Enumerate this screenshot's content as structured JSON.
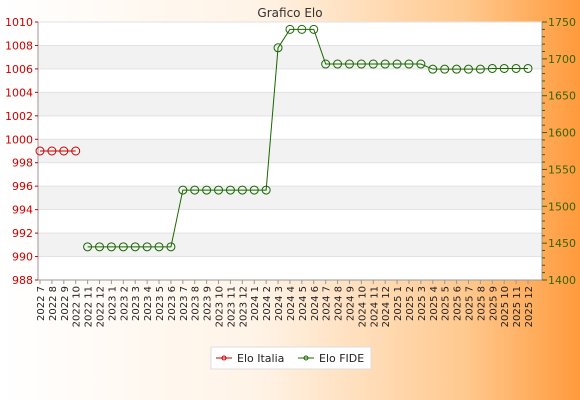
{
  "chart_data": {
    "type": "line",
    "title": "Grafico Elo",
    "categories": [
      "2022 7",
      "2022 8",
      "2022 9",
      "2022 10",
      "2022 11",
      "2022 12",
      "2023 1",
      "2023 2",
      "2023 3",
      "2023 4",
      "2023 5",
      "2023 6",
      "2023 7",
      "2023 8",
      "2023 9",
      "2023 10",
      "2023 11",
      "2023 12",
      "2024 1",
      "2024 2",
      "2024 3",
      "2024 4",
      "2024 5",
      "2024 6",
      "2024 7",
      "2024 8",
      "2024 9",
      "2024 10",
      "2024 11",
      "2024 12",
      "2025 1",
      "2025 2",
      "2025 3",
      "2025 4",
      "2025 5",
      "2025 6",
      "2025 7",
      "2025 8",
      "2025 9",
      "2025 10",
      "2025 11",
      "2025 12"
    ],
    "y_left": {
      "range": [
        988,
        1010
      ],
      "ticks": [
        988,
        990,
        992,
        994,
        996,
        998,
        1000,
        1002,
        1004,
        1006,
        1008,
        1010
      ],
      "color": "#cc0000"
    },
    "y_right": {
      "range": [
        1400,
        1750
      ],
      "ticks": [
        1400,
        1450,
        1500,
        1550,
        1600,
        1650,
        1700,
        1750
      ],
      "color": "#336600"
    },
    "grid": true,
    "legend_position": "bottom",
    "series": [
      {
        "name": "Elo Italia",
        "axis": "left",
        "color": "#cc0000",
        "values": [
          999,
          999,
          999,
          999,
          null,
          null,
          null,
          null,
          null,
          null,
          null,
          null,
          null,
          null,
          null,
          null,
          null,
          null,
          null,
          null,
          null,
          null,
          null,
          null,
          null,
          null,
          null,
          null,
          null,
          null,
          null,
          null,
          null,
          null,
          null,
          null,
          null,
          null,
          null,
          null,
          null,
          null
        ]
      },
      {
        "name": "Elo FIDE",
        "axis": "right",
        "color": "#1a6600",
        "values": [
          null,
          null,
          null,
          null,
          1445,
          1445,
          1445,
          1445,
          1445,
          1445,
          1445,
          1445,
          1522,
          1522,
          1522,
          1522,
          1522,
          1522,
          1522,
          1522,
          1715,
          1740,
          1740,
          1740,
          1693,
          1693,
          1693,
          1693,
          1693,
          1693,
          1693,
          1693,
          1693,
          1686,
          1686,
          1686,
          1686,
          1686,
          1687,
          1687,
          1687,
          1687
        ]
      }
    ]
  }
}
